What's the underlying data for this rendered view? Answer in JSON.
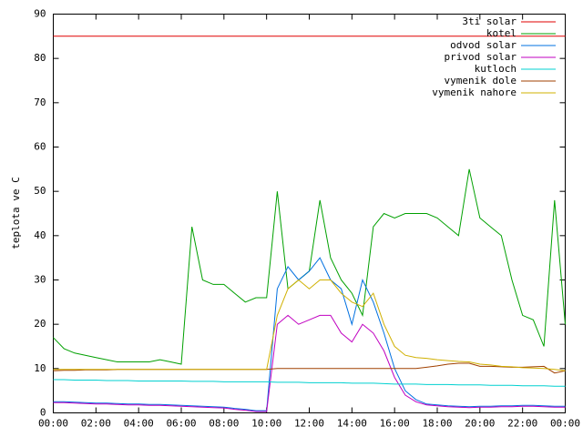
{
  "chart_data": {
    "type": "line",
    "ylabel": "teplota ve C",
    "xlim": [
      0,
      24
    ],
    "xticks": [
      {
        "value": 0,
        "label": "00:00"
      },
      {
        "value": 2,
        "label": "02:00"
      },
      {
        "value": 4,
        "label": "04:00"
      },
      {
        "value": 6,
        "label": "06:00"
      },
      {
        "value": 8,
        "label": "08:00"
      },
      {
        "value": 10,
        "label": "10:00"
      },
      {
        "value": 12,
        "label": "12:00"
      },
      {
        "value": 14,
        "label": "14:00"
      },
      {
        "value": 16,
        "label": "16:00"
      },
      {
        "value": 18,
        "label": "18:00"
      },
      {
        "value": 20,
        "label": "20:00"
      },
      {
        "value": 22,
        "label": "22:00"
      },
      {
        "value": 24,
        "label": "00:00"
      }
    ],
    "ylim": [
      0,
      90
    ],
    "yticks": [
      0,
      10,
      20,
      30,
      40,
      50,
      60,
      70,
      80,
      90
    ],
    "legend": "top-right",
    "x": [
      0,
      0.5,
      1,
      1.5,
      2,
      2.5,
      3,
      3.5,
      4,
      4.5,
      5,
      5.5,
      6,
      6.5,
      7,
      7.5,
      8,
      8.5,
      9,
      9.5,
      10,
      10.5,
      11,
      11.5,
      12,
      12.5,
      13,
      13.5,
      14,
      14.5,
      15,
      15.5,
      16,
      16.5,
      17,
      17.5,
      18,
      18.5,
      19,
      19.5,
      20,
      20.5,
      21,
      21.5,
      22,
      22.5,
      23,
      23.5,
      24
    ],
    "series": [
      {
        "name": "3ti solar",
        "color": "#e00000",
        "values": [
          85,
          85,
          85,
          85,
          85,
          85,
          85,
          85,
          85,
          85,
          85,
          85,
          85,
          85,
          85,
          85,
          85,
          85,
          85,
          85,
          85,
          85,
          85,
          85,
          85,
          85,
          85,
          85,
          85,
          85,
          85,
          85,
          85,
          85,
          85,
          85,
          85,
          85,
          85,
          85,
          85,
          85,
          85,
          85,
          85,
          85,
          85,
          85,
          85
        ]
      },
      {
        "name": "kotel",
        "color": "#00a000",
        "values": [
          17,
          14.5,
          13.5,
          13,
          12.5,
          12,
          11.5,
          11.5,
          11.5,
          11.5,
          12,
          11.5,
          11,
          42,
          30,
          29,
          29,
          27,
          25,
          26,
          26,
          50,
          28,
          30,
          32,
          48,
          35,
          30,
          27,
          22,
          42,
          45,
          44,
          45,
          45,
          45,
          44,
          42,
          40,
          55,
          44,
          42,
          40,
          30,
          22,
          21,
          15,
          48,
          20
        ]
      },
      {
        "name": "odvod solar",
        "color": "#0070e0",
        "values": [
          2.5,
          2.5,
          2.4,
          2.3,
          2.2,
          2.2,
          2.1,
          2,
          2,
          1.9,
          1.9,
          1.8,
          1.7,
          1.6,
          1.5,
          1.4,
          1.3,
          1,
          0.8,
          0.5,
          0.5,
          28,
          33,
          30,
          32,
          35,
          30,
          28,
          20,
          30,
          25,
          18,
          10,
          5,
          3,
          2,
          1.8,
          1.6,
          1.5,
          1.4,
          1.5,
          1.5,
          1.6,
          1.6,
          1.7,
          1.7,
          1.6,
          1.5,
          1.5
        ]
      },
      {
        "name": "privod solar",
        "color": "#c000c0",
        "values": [
          2.3,
          2.3,
          2.2,
          2.1,
          2,
          2,
          1.9,
          1.8,
          1.8,
          1.7,
          1.7,
          1.6,
          1.5,
          1.4,
          1.3,
          1.2,
          1.1,
          0.8,
          0.6,
          0.3,
          0.3,
          20,
          22,
          20,
          21,
          22,
          22,
          18,
          16,
          20,
          18,
          14,
          8,
          4,
          2.5,
          1.8,
          1.6,
          1.4,
          1.3,
          1.2,
          1.3,
          1.3,
          1.4,
          1.4,
          1.5,
          1.5,
          1.4,
          1.3,
          1.3
        ]
      },
      {
        "name": "kutloch",
        "color": "#00d0d0",
        "values": [
          7.5,
          7.5,
          7.4,
          7.4,
          7.4,
          7.3,
          7.3,
          7.3,
          7.2,
          7.2,
          7.2,
          7.2,
          7.2,
          7.1,
          7.1,
          7.1,
          7,
          7,
          7,
          7,
          7,
          6.9,
          6.9,
          6.9,
          6.8,
          6.8,
          6.8,
          6.8,
          6.7,
          6.7,
          6.7,
          6.6,
          6.5,
          6.5,
          6.5,
          6.4,
          6.4,
          6.4,
          6.3,
          6.3,
          6.3,
          6.2,
          6.2,
          6.2,
          6.1,
          6.1,
          6.1,
          6,
          6
        ]
      },
      {
        "name": "vymenik dole",
        "color": "#a04000",
        "values": [
          9.5,
          9.6,
          9.6,
          9.7,
          9.7,
          9.7,
          9.8,
          9.8,
          9.8,
          9.8,
          9.8,
          9.8,
          9.8,
          9.8,
          9.8,
          9.8,
          9.8,
          9.8,
          9.8,
          9.8,
          9.8,
          10,
          10,
          10,
          10,
          10,
          10,
          10,
          10,
          10,
          10,
          10,
          10,
          10,
          10,
          10.3,
          10.6,
          11,
          11.2,
          11.2,
          10.5,
          10.5,
          10.4,
          10.3,
          10.3,
          10.4,
          10.5,
          9,
          9.5
        ]
      },
      {
        "name": "vymenik nahore",
        "color": "#d0b000",
        "values": [
          9.8,
          9.8,
          9.8,
          9.8,
          9.8,
          9.8,
          9.8,
          9.8,
          9.8,
          9.8,
          9.8,
          9.8,
          9.8,
          9.8,
          9.8,
          9.8,
          9.8,
          9.8,
          9.8,
          9.8,
          9.8,
          22,
          28,
          30,
          28,
          30,
          30,
          27,
          25,
          24,
          27,
          20,
          15,
          13,
          12.5,
          12.3,
          12,
          11.8,
          11.6,
          11.5,
          11,
          10.8,
          10.5,
          10.4,
          10.2,
          10.1,
          10,
          9.8,
          9.5
        ]
      }
    ]
  }
}
